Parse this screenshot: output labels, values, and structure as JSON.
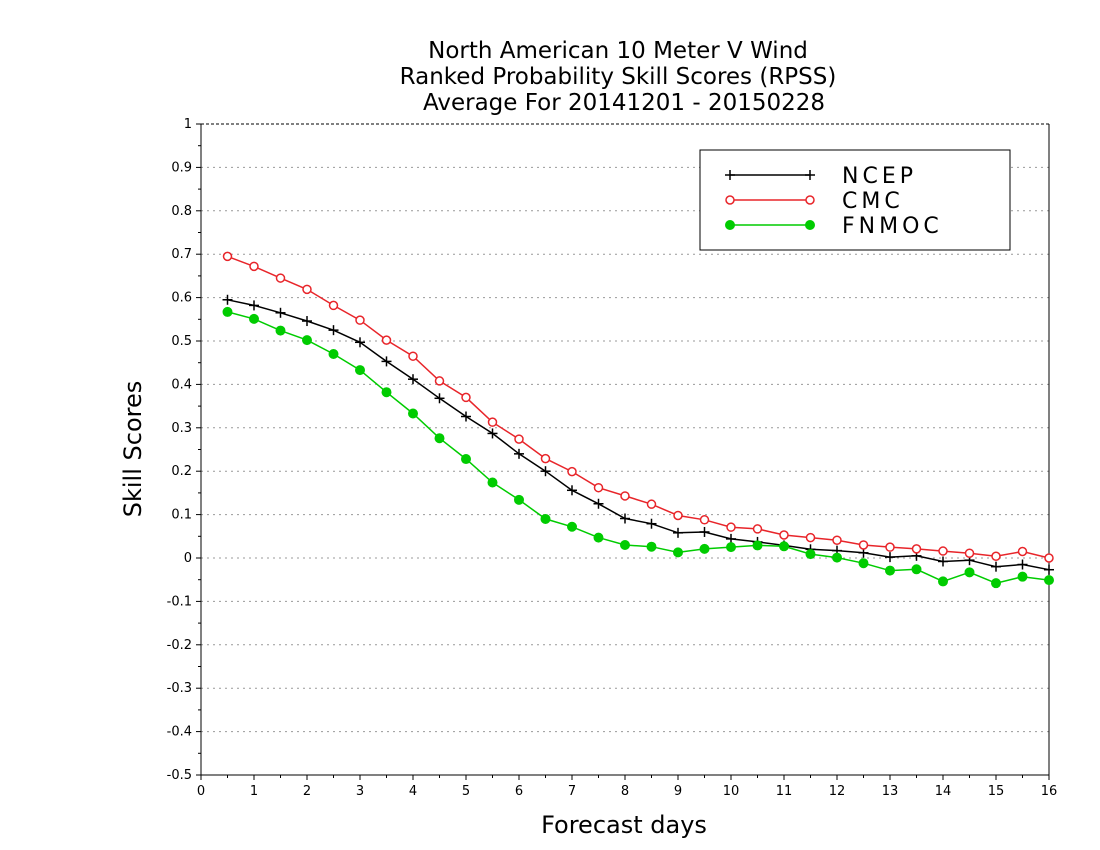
{
  "chart_data": {
    "type": "line",
    "title_lines": [
      "North American 10 Meter V Wind",
      "Ranked Probability Skill Scores (RPSS)",
      "Average For 20141201 - 20150228"
    ],
    "xlabel": "Forecast days",
    "ylabel": "Skill Scores",
    "xlim": [
      0,
      16
    ],
    "ylim": [
      -0.5,
      1
    ],
    "x_ticks": [
      "0",
      "1",
      "2",
      "3",
      "4",
      "5",
      "6",
      "7",
      "8",
      "9",
      "10",
      "11",
      "12",
      "13",
      "14",
      "15",
      "16"
    ],
    "y_ticks": [
      "-0.5",
      "-0.4",
      "-0.3",
      "-0.2",
      "-0.1",
      "0",
      "0.1",
      "0.2",
      "0.3",
      "0.4",
      "0.5",
      "0.6",
      "0.7",
      "0.8",
      "0.9",
      "1"
    ],
    "grid": "horizontal dotted",
    "legend_position": "top-right",
    "x": [
      0.5,
      1,
      1.5,
      2,
      2.5,
      3,
      3.5,
      4,
      4.5,
      5,
      5.5,
      6,
      6.5,
      7,
      7.5,
      8,
      8.5,
      9,
      9.5,
      10,
      10.5,
      11,
      11.5,
      12,
      12.5,
      13,
      13.5,
      14,
      14.5,
      15,
      15.5,
      16
    ],
    "series": [
      {
        "name": "NCEP",
        "color": "#000000",
        "marker": "plus",
        "values": [
          0.595,
          0.582,
          0.565,
          0.546,
          0.525,
          0.497,
          0.453,
          0.412,
          0.368,
          0.326,
          0.287,
          0.24,
          0.2,
          0.156,
          0.125,
          0.091,
          0.079,
          0.058,
          0.06,
          0.044,
          0.037,
          0.029,
          0.02,
          0.017,
          0.012,
          0.002,
          0.005,
          -0.008,
          -0.005,
          -0.02,
          -0.015,
          -0.027
        ]
      },
      {
        "name": "CMC",
        "color": "#e8252a",
        "marker": "open-circle",
        "values": [
          0.695,
          0.672,
          0.645,
          0.619,
          0.582,
          0.548,
          0.502,
          0.465,
          0.408,
          0.37,
          0.313,
          0.274,
          0.229,
          0.199,
          0.162,
          0.143,
          0.124,
          0.098,
          0.088,
          0.071,
          0.067,
          0.053,
          0.047,
          0.041,
          0.03,
          0.025,
          0.021,
          0.016,
          0.011,
          0.004,
          0.015,
          0.0
        ]
      },
      {
        "name": "FNMOC",
        "color": "#00cc00",
        "marker": "filled-circle",
        "values": [
          0.567,
          0.551,
          0.524,
          0.502,
          0.47,
          0.433,
          0.382,
          0.333,
          0.276,
          0.228,
          0.174,
          0.134,
          0.09,
          0.072,
          0.047,
          0.03,
          0.026,
          0.013,
          0.021,
          0.025,
          0.029,
          0.027,
          0.009,
          0.001,
          -0.012,
          -0.029,
          -0.026,
          -0.054,
          -0.033,
          -0.058,
          -0.043,
          -0.051
        ]
      }
    ]
  }
}
